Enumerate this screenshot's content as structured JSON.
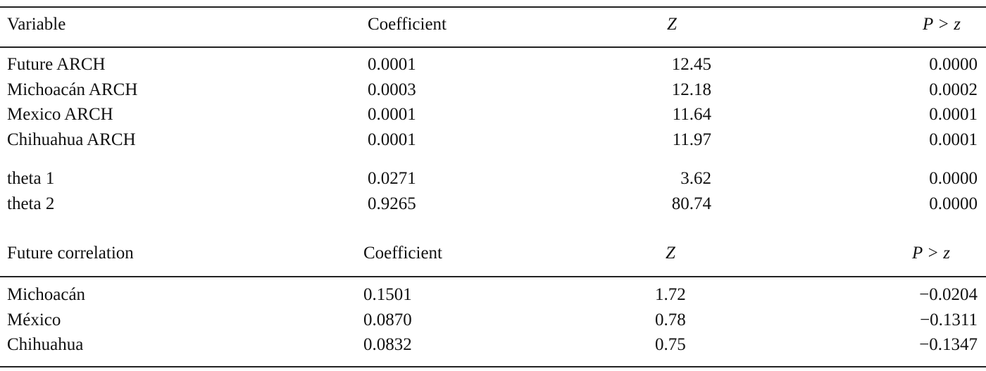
{
  "sections": [
    {
      "header": [
        "Variable",
        "Coefficient",
        "Z",
        "P > z"
      ],
      "rows": [
        [
          "Future ARCH",
          "0.0001",
          "12.45",
          "0.0000"
        ],
        [
          "Michoacán ARCH",
          "0.0003",
          "12.18",
          "0.0002"
        ],
        [
          "Mexico ARCH",
          "0.0001",
          "11.64",
          "0.0001"
        ],
        [
          "Chihuahua ARCH",
          "0.0001",
          "11.97",
          "0.0001"
        ],
        [
          "theta 1",
          "0.0271",
          "3.62",
          "0.0000"
        ],
        [
          "theta 2",
          "0.9265",
          "80.74",
          "0.0000"
        ]
      ]
    },
    {
      "header": [
        "Future correlation",
        "Coefficient",
        "Z",
        "P > z"
      ],
      "rows": [
        [
          "Michoacán",
          "0.1501",
          "1.72",
          "−0.0204"
        ],
        [
          "México",
          "0.0870",
          "0.78",
          "−0.1311"
        ],
        [
          "Chihuahua",
          "0.0832",
          "0.75",
          "−0.1347"
        ]
      ]
    }
  ]
}
